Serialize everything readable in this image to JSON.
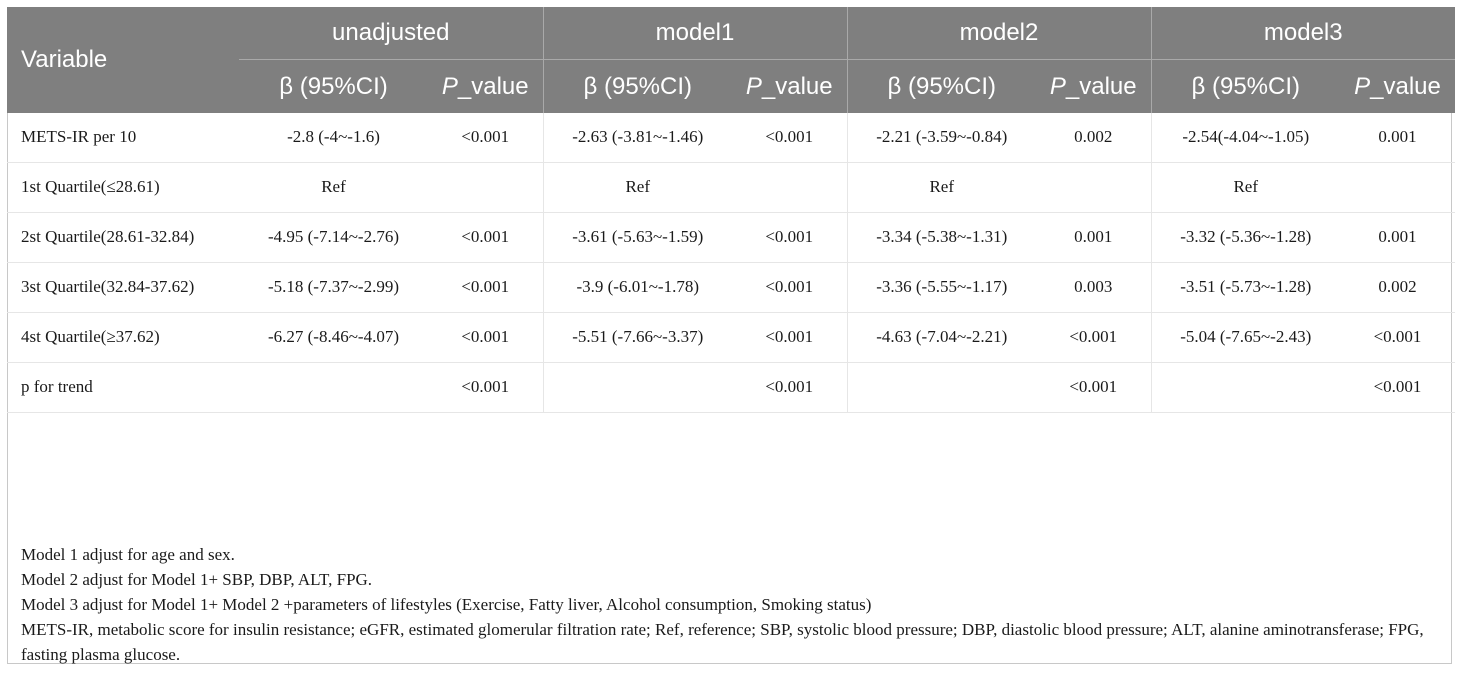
{
  "header": {
    "variable": "Variable",
    "groups": [
      "unadjusted",
      "model1",
      "model2",
      "model3"
    ],
    "beta_label": "β (95%CI)",
    "p_label_italic": "P",
    "p_label_rest": "_value"
  },
  "rows": [
    {
      "label": "METS-IR per 10",
      "cells": [
        "-2.8 (-4~-1.6)",
        "<0.001",
        "-2.63 (-3.81~-1.46)",
        "<0.001",
        "-2.21 (-3.59~-0.84)",
        "0.002",
        "-2.54(-4.04~-1.05)",
        "0.001"
      ]
    },
    {
      "label": "1st Quartile(≤28.61)",
      "cells": [
        "Ref",
        "",
        "Ref",
        "",
        "Ref",
        "",
        "Ref",
        ""
      ]
    },
    {
      "label": "2st Quartile(28.61-32.84)",
      "cells": [
        "-4.95 (-7.14~-2.76)",
        "<0.001",
        "-3.61 (-5.63~-1.59)",
        "<0.001",
        "-3.34 (-5.38~-1.31)",
        "0.001",
        "-3.32 (-5.36~-1.28)",
        "0.001"
      ]
    },
    {
      "label": "3st Quartile(32.84-37.62)",
      "cells": [
        "-5.18 (-7.37~-2.99)",
        "<0.001",
        "-3.9 (-6.01~-1.78)",
        "<0.001",
        "-3.36 (-5.55~-1.17)",
        "0.003",
        "-3.51 (-5.73~-1.28)",
        "0.002"
      ]
    },
    {
      "label": "4st Quartile(≥37.62)",
      "cells": [
        "-6.27 (-8.46~-4.07)",
        "<0.001",
        "-5.51 (-7.66~-3.37)",
        "<0.001",
        "-4.63 (-7.04~-2.21)",
        "<0.001",
        "-5.04 (-7.65~-2.43)",
        "<0.001"
      ]
    },
    {
      "label": "p for trend",
      "cells": [
        "",
        "<0.001",
        "",
        "<0.001",
        "",
        "<0.001",
        "",
        "<0.001"
      ]
    }
  ],
  "notes": [
    "Model 1 adjust for age and sex.",
    "Model 2 adjust for Model 1+ SBP, DBP, ALT, FPG.",
    "Model 3 adjust for Model 1+ Model 2 +parameters of lifestyles (Exercise, Fatty liver, Alcohol consumption, Smoking status)",
    "METS-IR, metabolic score for insulin resistance; eGFR, estimated glomerular filtration rate; Ref, reference; SBP, systolic blood pressure; DBP, diastolic blood pressure; ALT, alanine aminotransferase; FPG, fasting plasma glucose."
  ]
}
